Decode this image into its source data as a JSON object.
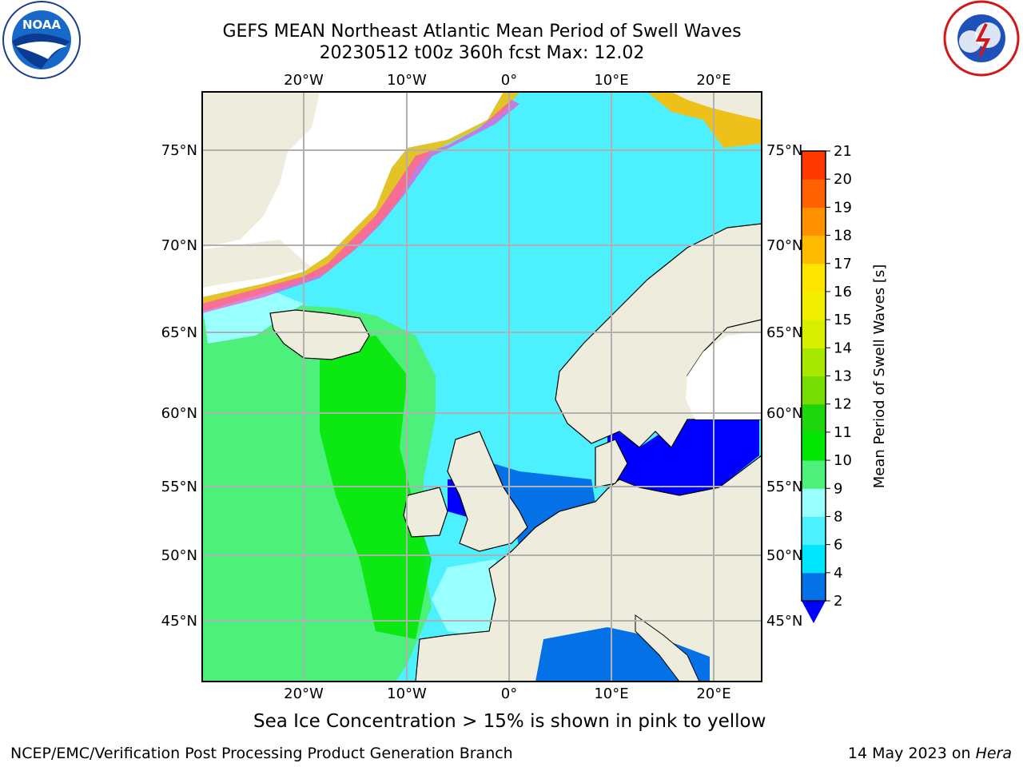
{
  "title": {
    "line1": "GEFS MEAN Northeast Atlantic Mean Period of Swell Waves",
    "line2": "20230512 t00z 360h fcst   Max: 12.02"
  },
  "subtitle": "Sea Ice Concentration > 15% is shown in pink to yellow",
  "footer": {
    "left": "NCEP/EMC/Verification Post Processing Product Generation Branch",
    "right_prefix": "14 May 2023 on ",
    "right_machine": "Hera"
  },
  "logos": {
    "left": {
      "text": "NOAA",
      "ring_text": "NATIONAL OCEANIC AND ATMOSPHERIC ADMINISTRATION · U.S. DEPARTMENT OF COMMERCE",
      "icon": "noaa-logo"
    },
    "right": {
      "ring_text": "NATIONAL WEATHER SERVICE",
      "icon": "nws-logo"
    }
  },
  "map": {
    "lon_ticks": [
      "20°W",
      "10°W",
      "0°",
      "10°E",
      "20°E"
    ],
    "lat_ticks": [
      "75°N",
      "70°N",
      "65°N",
      "60°N",
      "55°N",
      "50°N",
      "45°N"
    ],
    "grid": true,
    "colors": {
      "land": "#eeecdc",
      "ice_open": "#ffffff",
      "coast": "#000000"
    }
  },
  "colorbar": {
    "label": "Mean Period of Swell Waves [s]",
    "ticks": [
      "2",
      "4",
      "6",
      "8",
      "9",
      "10",
      "11",
      "12",
      "13",
      "14",
      "15",
      "16",
      "17",
      "18",
      "19",
      "20",
      "21"
    ],
    "colors": [
      "#0571e6",
      "#00e5ff",
      "#4cf0ff",
      "#99ffff",
      "#4cf07a",
      "#00e600",
      "#1ed60d",
      "#76dc04",
      "#a8e800",
      "#d8f000",
      "#f2f000",
      "#ffe400",
      "#ffbb00",
      "#ff9000",
      "#ff6000",
      "#ff3a00"
    ],
    "under_color": "#0000ff",
    "extend": "min"
  }
}
